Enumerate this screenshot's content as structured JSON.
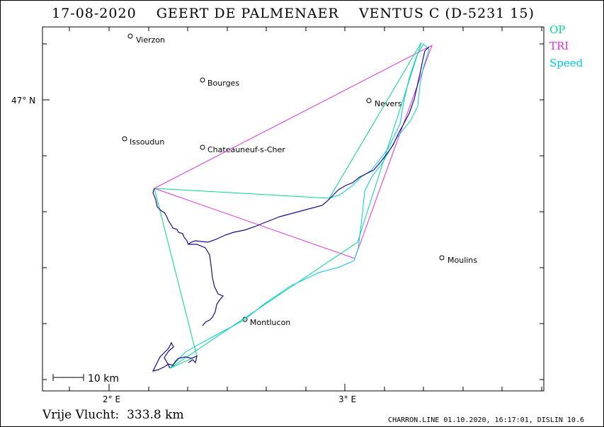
{
  "header": {
    "title": "17-08-2020    GEERT DE PALMENAER    VENTUS C (D-5231 15)"
  },
  "legend": [
    {
      "label": "OP",
      "color": "#00d890"
    },
    {
      "label": "TRI",
      "color": "#e030e0"
    },
    {
      "label": "Speed",
      "color": "#00c8e8"
    }
  ],
  "axes": {
    "lat_label": "47° N",
    "lon_labels": [
      "2° E",
      "3° E"
    ]
  },
  "scale_bar": {
    "label": "10  km"
  },
  "cities": [
    {
      "name": "Vierzon"
    },
    {
      "name": "Bourges"
    },
    {
      "name": "Nevers"
    },
    {
      "name": "Issoudun"
    },
    {
      "name": "Chateauneuf-s-Cher"
    },
    {
      "name": "Moulins"
    },
    {
      "name": "Montlucon"
    }
  ],
  "footer": {
    "distance": "Vrije Vlucht:  333.8 km",
    "credits": "CHARRON.LINE 01.10.2020, 16:17:01, DISLIN 10.6"
  },
  "colors": {
    "track": "#1a0a8c",
    "op": "#00d890",
    "tri": "#e030e0",
    "speed": "#00c8e8"
  }
}
